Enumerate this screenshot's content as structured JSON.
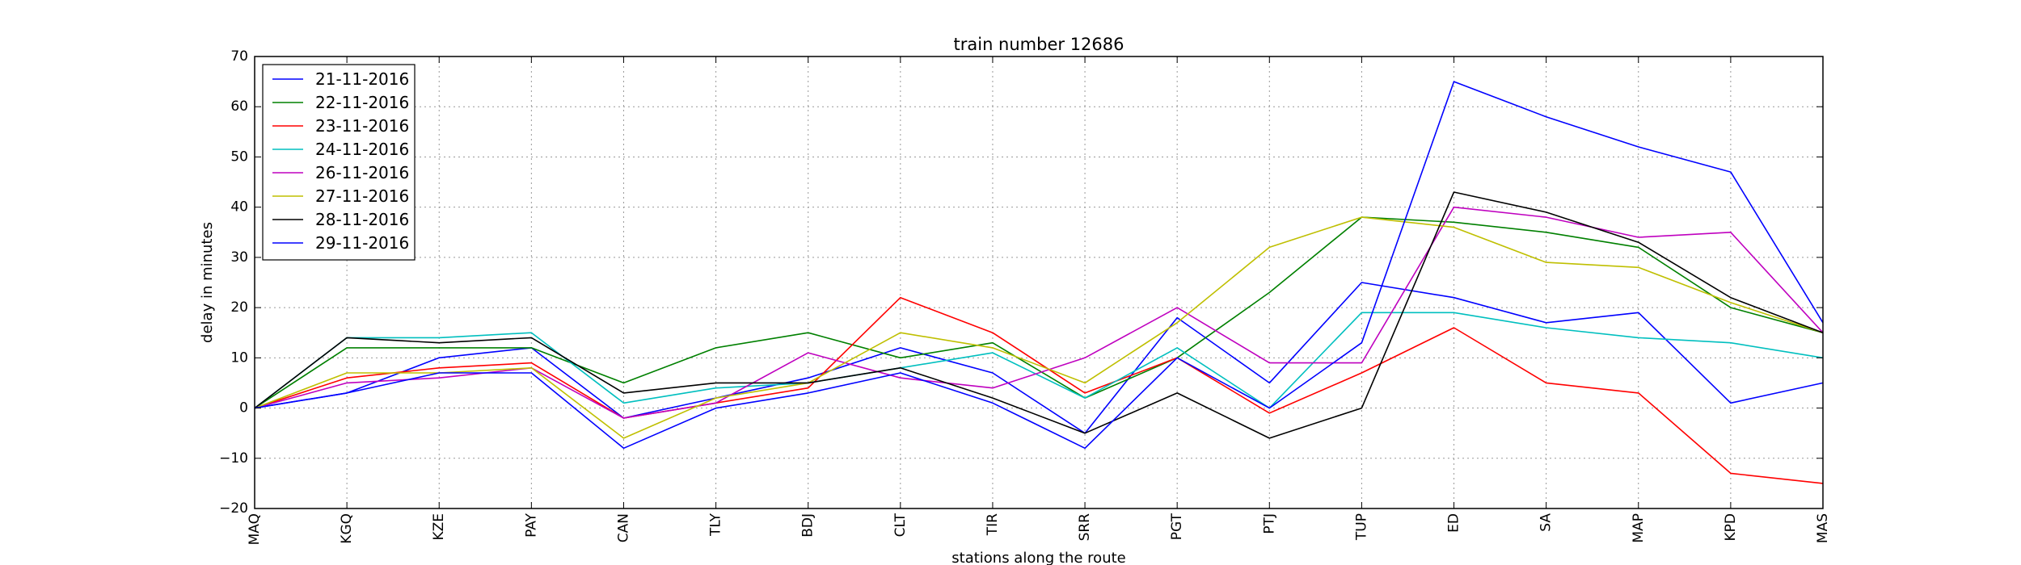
{
  "chart_data": {
    "type": "line",
    "title": "train number 12686",
    "xlabel": "stations along the route",
    "ylabel": "delay in minutes",
    "categories": [
      "MAQ",
      "KGQ",
      "KZE",
      "PAY",
      "CAN",
      "TLY",
      "BDJ",
      "CLT",
      "TIR",
      "SRR",
      "PGT",
      "PTJ",
      "TUP",
      "ED",
      "SA",
      "MAP",
      "KPD",
      "MAS"
    ],
    "ylim": [
      -20,
      70
    ],
    "yticks": [
      -20,
      -10,
      0,
      10,
      20,
      30,
      40,
      50,
      60,
      70
    ],
    "grid": true,
    "legend_position": "top-left",
    "series": [
      {
        "name": "21-11-2016",
        "color": "#0000ff",
        "values": [
          0,
          3,
          10,
          12,
          -2,
          2,
          6,
          12,
          7,
          -5,
          18,
          5,
          25,
          22,
          17,
          19,
          1,
          5
        ]
      },
      {
        "name": "22-11-2016",
        "color": "#008000",
        "values": [
          0,
          12,
          12,
          12,
          5,
          12,
          15,
          10,
          13,
          2,
          10,
          23,
          38,
          37,
          35,
          32,
          20,
          15
        ]
      },
      {
        "name": "23-11-2016",
        "color": "#ff0000",
        "values": [
          0,
          6,
          8,
          9,
          -2,
          1,
          4,
          22,
          15,
          3,
          10,
          -1,
          7,
          16,
          5,
          3,
          -13,
          -15
        ]
      },
      {
        "name": "24-11-2016",
        "color": "#00bfbf",
        "values": [
          0,
          14,
          14,
          15,
          1,
          4,
          5,
          8,
          11,
          2,
          12,
          0,
          19,
          19,
          16,
          14,
          13,
          10
        ]
      },
      {
        "name": "26-11-2016",
        "color": "#bf00bf",
        "values": [
          0,
          5,
          6,
          8,
          -2,
          1,
          11,
          6,
          4,
          10,
          20,
          9,
          9,
          40,
          38,
          34,
          35,
          15
        ]
      },
      {
        "name": "27-11-2016",
        "color": "#bfbf00",
        "values": [
          0,
          7,
          7,
          8,
          -6,
          2,
          5,
          15,
          12,
          5,
          17,
          32,
          38,
          36,
          29,
          28,
          21,
          15
        ]
      },
      {
        "name": "28-11-2016",
        "color": "#000000",
        "values": [
          0,
          14,
          13,
          14,
          3,
          5,
          5,
          8,
          2,
          -5,
          3,
          -6,
          0,
          43,
          39,
          33,
          22,
          15
        ]
      },
      {
        "name": "29-11-2016",
        "color": "#0000ff",
        "values": [
          0,
          3,
          7,
          7,
          -8,
          0,
          3,
          7,
          1,
          -8,
          10,
          0,
          13,
          65,
          58,
          52,
          47,
          17
        ]
      }
    ]
  }
}
